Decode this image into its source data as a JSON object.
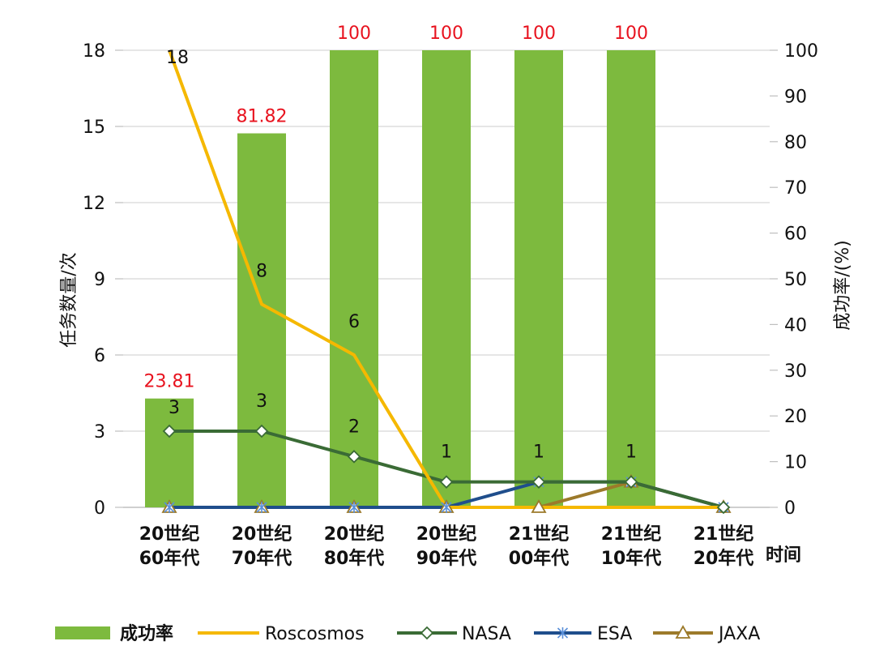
{
  "chart_data": {
    "type": "bar",
    "x_axis_label": "时间",
    "categories": [
      [
        "20世纪",
        "60年代"
      ],
      [
        "20世纪",
        "70年代"
      ],
      [
        "20世纪",
        "80年代"
      ],
      [
        "20世纪",
        "90年代"
      ],
      [
        "21世纪",
        "00年代"
      ],
      [
        "21世纪",
        "10年代"
      ],
      [
        "21世纪",
        "20年代"
      ]
    ],
    "y_left": {
      "label": "任务数量/次",
      "ticks": [
        0,
        3,
        6,
        9,
        12,
        15,
        18
      ],
      "range": [
        0,
        18
      ]
    },
    "y_right": {
      "label": "成功率/(%)",
      "ticks": [
        0,
        10,
        20,
        30,
        40,
        50,
        60,
        70,
        80,
        90,
        100
      ],
      "range": [
        0,
        100
      ]
    },
    "bars": {
      "name": "成功率",
      "axis": "right",
      "color": "#7dba3e",
      "values": [
        23.81,
        81.82,
        100,
        100,
        100,
        100,
        null
      ],
      "labels": [
        "23.81",
        "81.82",
        "100",
        "100",
        "100",
        "100",
        ""
      ],
      "label_color": "#e8131f"
    },
    "lines": [
      {
        "name": "Roscosmos",
        "axis": "left",
        "color": "#f5b800",
        "marker": "none",
        "values": [
          18,
          8,
          6,
          0,
          0,
          0,
          0
        ],
        "labels": [
          "18",
          "8",
          "6",
          "",
          "",
          "",
          ""
        ]
      },
      {
        "name": "NASA",
        "axis": "left",
        "color": "#3a6b35",
        "marker": "diamond",
        "values": [
          3,
          3,
          2,
          1,
          1,
          1,
          0
        ],
        "labels": [
          "3",
          "3",
          "2",
          "1",
          "1",
          "1",
          ""
        ]
      },
      {
        "name": "ESA",
        "axis": "left",
        "color": "#1f4e8c",
        "marker": "asterisk",
        "values": [
          0,
          0,
          0,
          0,
          1,
          1,
          0
        ],
        "labels": [
          "",
          "",
          "",
          "",
          "",
          "",
          ""
        ]
      },
      {
        "name": "JAXA",
        "axis": "left",
        "color": "#9c7a2a",
        "marker": "triangle",
        "values": [
          0,
          0,
          0,
          0,
          0,
          1,
          0
        ],
        "labels": [
          "",
          "",
          "",
          "",
          "",
          "",
          ""
        ]
      }
    ],
    "legend": [
      "成功率",
      "Roscosmos",
      "NASA",
      "ESA",
      "JAXA"
    ],
    "legend_position": "bottom",
    "grid": true
  }
}
